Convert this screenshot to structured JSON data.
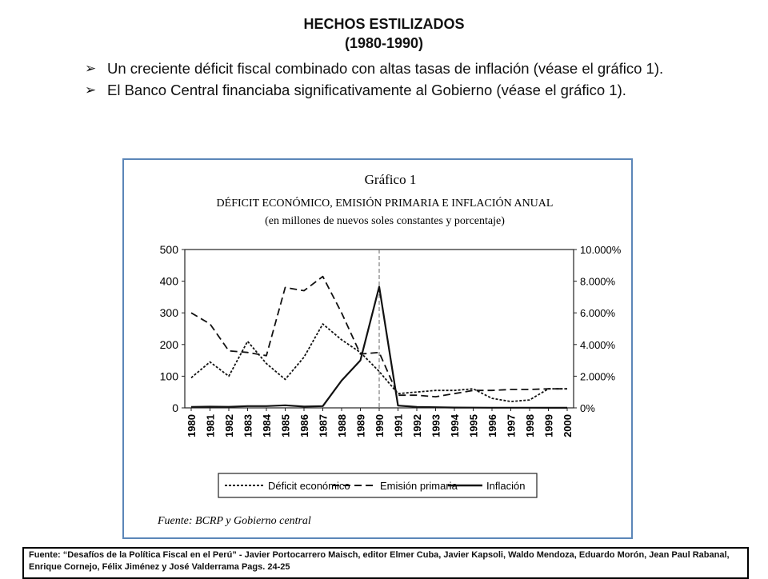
{
  "slide": {
    "title_line1": "HECHOS ESTILIZADOS",
    "title_line2": "(1980-1990)",
    "bullets": [
      "Un creciente déficit fiscal combinado con altas tasas de inflación (véase el gráfico 1).",
      "El Banco Central financiaba significativamente al Gobierno (véase el gráfico 1)."
    ],
    "source": "Fuente: “Desafíos de la Política Fiscal en el Perú” - Javier Portocarrero Maisch, editor Elmer Cuba, Javier Kapsoli, Waldo Mendoza, Eduardo Morón, Jean Paul Rabanal, Enrique Cornejo, Félix Jiménez y José Valderrama  Pags. 24-25"
  },
  "chart_data": {
    "type": "line",
    "figure_label": "Gráfico 1",
    "title": "DÉFICIT ECONÓMICO, EMISIÓN PRIMARIA E INFLACIÓN ANUAL",
    "subtitle": "(en millones de nuevos soles constantes y porcentaje)",
    "x": [
      "1980",
      "1981",
      "1982",
      "1983",
      "1984",
      "1985",
      "1986",
      "1987",
      "1988",
      "1989",
      "1990",
      "1991",
      "1992",
      "1993",
      "1994",
      "1995",
      "1996",
      "1997",
      "1998",
      "1999",
      "2000"
    ],
    "y_left": {
      "ylim": [
        0,
        500
      ],
      "ticks": [
        "0",
        "100",
        "200",
        "300",
        "400",
        "500"
      ]
    },
    "y_right": {
      "ylim": [
        0,
        10000
      ],
      "ticks": [
        "0%",
        "2.000%",
        "4.000%",
        "6.000%",
        "8.000%",
        "10.000%"
      ]
    },
    "reference_line_x": "1990",
    "series": [
      {
        "name": "Déficit económico",
        "axis": "left",
        "dash": "3,2",
        "values": [
          95,
          145,
          100,
          210,
          140,
          90,
          160,
          265,
          215,
          175,
          115,
          45,
          50,
          55,
          55,
          60,
          30,
          20,
          25,
          60,
          60
        ]
      },
      {
        "name": "Emisión primaria",
        "axis": "left",
        "dash": "9,5",
        "values": [
          300,
          265,
          180,
          175,
          165,
          380,
          370,
          415,
          300,
          170,
          175,
          40,
          40,
          35,
          45,
          55,
          55,
          58,
          58,
          60,
          60
        ]
      },
      {
        "name": "Inflación",
        "axis": "right",
        "dash": "",
        "values": [
          60,
          75,
          65,
          110,
          110,
          160,
          80,
          110,
          1720,
          3000,
          7650,
          140,
          60,
          40,
          20,
          15,
          10,
          10,
          10,
          5,
          5
        ]
      }
    ],
    "legend": {
      "position": "bottom"
    },
    "source_note": "Fuente: BCRP y Gobierno central"
  }
}
